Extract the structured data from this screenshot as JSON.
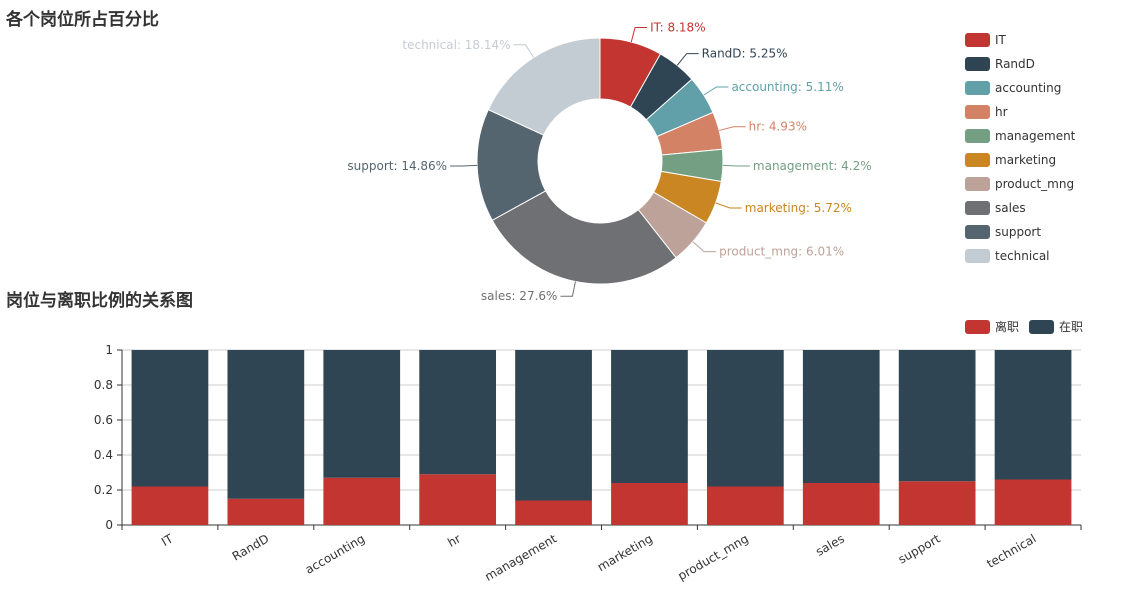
{
  "chart_data": [
    {
      "type": "pie",
      "title": "各个岗位所占百分比",
      "donut": true,
      "legend_position": "right",
      "slices": [
        {
          "name": "IT",
          "value": 8.18,
          "label": "IT: 8.18%",
          "color": "#c23531"
        },
        {
          "name": "RandD",
          "value": 5.25,
          "label": "RandD: 5.25%",
          "color": "#2f4554"
        },
        {
          "name": "accounting",
          "value": 5.11,
          "label": "accounting: 5.11%",
          "color": "#61a0a8"
        },
        {
          "name": "hr",
          "value": 4.93,
          "label": "hr: 4.93%",
          "color": "#d48265"
        },
        {
          "name": "management",
          "value": 4.2,
          "label": "management: 4.2%",
          "color": "#749f83"
        },
        {
          "name": "marketing",
          "value": 5.72,
          "label": "marketing: 5.72%",
          "color": "#ca8622"
        },
        {
          "name": "product_mng",
          "value": 6.01,
          "label": "product_mng: 6.01%",
          "color": "#bda29a"
        },
        {
          "name": "sales",
          "value": 27.6,
          "label": "sales: 27.6%",
          "color": "#6e7074"
        },
        {
          "name": "support",
          "value": 14.86,
          "label": "support: 14.86%",
          "color": "#546570"
        },
        {
          "name": "technical",
          "value": 18.14,
          "label": "technical: 18.14%",
          "color": "#c4ccd3"
        }
      ]
    },
    {
      "type": "bar",
      "stacked": true,
      "title": "岗位与离职比例的关系图",
      "legend_position": "top-right",
      "categories": [
        "IT",
        "RandD",
        "accounting",
        "hr",
        "management",
        "marketing",
        "product_mng",
        "sales",
        "support",
        "technical"
      ],
      "series": [
        {
          "name": "离职",
          "color": "#c23531",
          "values": [
            0.22,
            0.15,
            0.27,
            0.29,
            0.14,
            0.24,
            0.22,
            0.24,
            0.25,
            0.26
          ]
        },
        {
          "name": "在职",
          "color": "#2f4554",
          "values": [
            0.78,
            0.85,
            0.73,
            0.71,
            0.86,
            0.76,
            0.78,
            0.76,
            0.75,
            0.74
          ]
        }
      ],
      "ylim": [
        0,
        1
      ],
      "yticks": [
        "0",
        "0.2",
        "0.4",
        "0.6",
        "0.8",
        "1"
      ],
      "grid": true,
      "xtick_rotation": "rotated"
    }
  ]
}
